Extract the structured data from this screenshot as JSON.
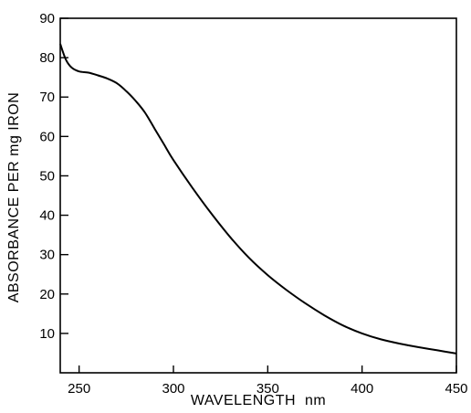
{
  "chart_data": {
    "type": "line",
    "title": "",
    "xlabel": "WAVELENGTH  nm",
    "ylabel": "ABSORBANCE PER mg IRON",
    "xlim": [
      240,
      450
    ],
    "ylim": [
      0,
      90
    ],
    "x_ticks": [
      250,
      300,
      350,
      400,
      450
    ],
    "x_tick_labels": [
      "250",
      "300",
      "350",
      "400",
      "450"
    ],
    "y_ticks": [
      10,
      20,
      30,
      40,
      50,
      60,
      70,
      80,
      90
    ],
    "y_tick_labels": [
      "10",
      "20",
      "30",
      "40",
      "50",
      "60",
      "70",
      "80",
      "90"
    ],
    "grid": false,
    "legend": "none",
    "series": [
      {
        "color": "#000000",
        "x": [
          240,
          243,
          246,
          250,
          255,
          260,
          265,
          270,
          275,
          280,
          285,
          290,
          295,
          300,
          310,
          320,
          330,
          340,
          350,
          360,
          370,
          380,
          390,
          400,
          410,
          420,
          430,
          440,
          450
        ],
        "y": [
          83.5,
          79.5,
          77.5,
          76.5,
          76.2,
          75.5,
          74.7,
          73.5,
          71.5,
          69.0,
          66.0,
          62.0,
          58.0,
          54.0,
          47.0,
          40.5,
          34.5,
          29.2,
          24.8,
          21.0,
          17.6,
          14.6,
          12.0,
          10.0,
          8.5,
          7.4,
          6.5,
          5.7,
          4.9
        ]
      }
    ]
  }
}
